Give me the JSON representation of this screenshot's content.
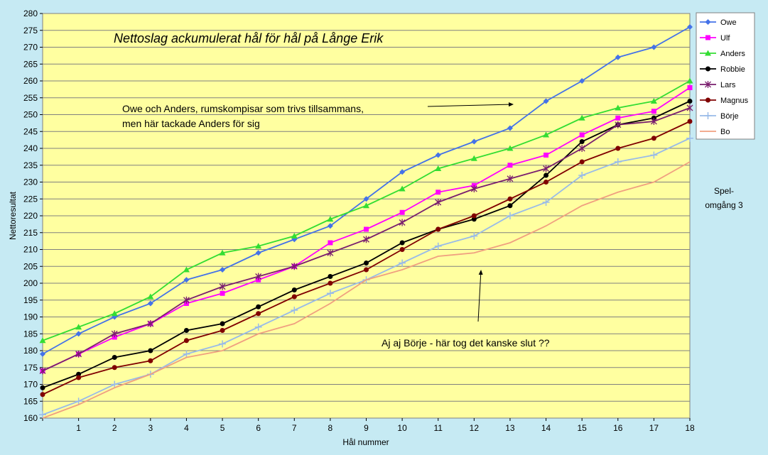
{
  "chart_data": {
    "type": "line",
    "title": "Nettoslag ackumulerat hål för hål på Långe Erik",
    "xlabel": "Hål nummer",
    "ylabel": "Nettoresultat",
    "x": [
      0,
      1,
      2,
      3,
      4,
      5,
      6,
      7,
      8,
      9,
      10,
      11,
      12,
      13,
      14,
      15,
      16,
      17,
      18
    ],
    "x_tick_labels": [
      "1",
      "2",
      "3",
      "4",
      "5",
      "6",
      "7",
      "8",
      "9",
      "10",
      "11",
      "12",
      "13",
      "14",
      "15",
      "16",
      "17",
      "18"
    ],
    "xlim": [
      0,
      18
    ],
    "ylim": [
      160,
      280
    ],
    "y_ticks": [
      160,
      165,
      170,
      175,
      180,
      185,
      190,
      195,
      200,
      205,
      210,
      215,
      220,
      225,
      230,
      235,
      240,
      245,
      250,
      255,
      260,
      265,
      270,
      275,
      280
    ],
    "grid": "horizontal",
    "legend_position": "top-right",
    "series": [
      {
        "name": "Owe",
        "color": "#4472e8",
        "marker": "diamond",
        "values": [
          179,
          185,
          190,
          194,
          201,
          204,
          209,
          213,
          217,
          225,
          233,
          238,
          242,
          246,
          254,
          260,
          267,
          270,
          276
        ]
      },
      {
        "name": "Ulf",
        "color": "#ff00ff",
        "marker": "square",
        "values": [
          174,
          179,
          184,
          188,
          194,
          197,
          201,
          205,
          212,
          216,
          221,
          227,
          229,
          235,
          238,
          244,
          249,
          251,
          258
        ]
      },
      {
        "name": "Anders",
        "color": "#33dd33",
        "marker": "triangle",
        "values": [
          183,
          187,
          191,
          196,
          204,
          209,
          211,
          214,
          219,
          223,
          228,
          234,
          237,
          240,
          244,
          249,
          252,
          254,
          260
        ]
      },
      {
        "name": "Robbie",
        "color": "#000000",
        "marker": "circle",
        "values": [
          169,
          173,
          178,
          180,
          186,
          188,
          193,
          198,
          202,
          206,
          212,
          216,
          219,
          223,
          232,
          242,
          247,
          249,
          254
        ]
      },
      {
        "name": "Lars",
        "color": "#7a1e6e",
        "marker": "star",
        "values": [
          174,
          179,
          185,
          188,
          195,
          199,
          202,
          205,
          209,
          213,
          218,
          224,
          228,
          231,
          234,
          240,
          247,
          248,
          252
        ]
      },
      {
        "name": "Magnus",
        "color": "#800000",
        "marker": "circle",
        "values": [
          167,
          172,
          175,
          177,
          183,
          186,
          191,
          196,
          200,
          204,
          210,
          216,
          220,
          225,
          230,
          236,
          240,
          243,
          248
        ]
      },
      {
        "name": "Börje",
        "color": "#99bbe8",
        "marker": "plus",
        "values": [
          161,
          165,
          170,
          173,
          179,
          182,
          187,
          192,
          197,
          201,
          206,
          211,
          214,
          220,
          224,
          232,
          236,
          238,
          243
        ]
      },
      {
        "name": "Bo",
        "color": "#f0a080",
        "marker": "none",
        "values": [
          160,
          164,
          169,
          173,
          178,
          180,
          185,
          188,
          194,
          201,
          204,
          208,
          209,
          212,
          217,
          223,
          227,
          230,
          236
        ]
      }
    ],
    "annotations": {
      "note1_line1": "Owe och Anders, rumskompisar som trivs tillsammans,",
      "note1_line2": "men här tackade Anders för sig",
      "note2": "Aj aj Börje - här tog det kanske slut ??",
      "side_line1": "Spel-",
      "side_line2": "omgång 3"
    }
  }
}
